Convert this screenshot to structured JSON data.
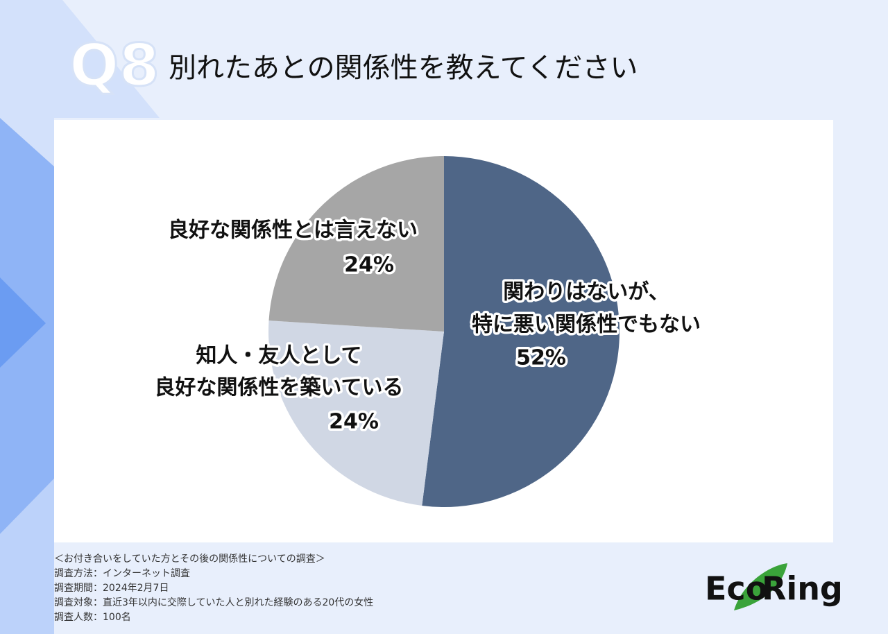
{
  "header": {
    "badge": "Q8",
    "title": "別れたあとの関係性を教えてください"
  },
  "chart_data": {
    "type": "pie",
    "categories": [
      [
        "関わりはないが、",
        "特に悪い関係性でもない"
      ],
      [
        "知人・友人として",
        "良好な関係性を築いている"
      ],
      [
        "良好な関係性とは言えない"
      ]
    ],
    "values": [
      52,
      24,
      24
    ],
    "value_labels": [
      "52%",
      "24%",
      "24%"
    ],
    "colors": [
      "#4f6687",
      "#d0d7e4",
      "#a6a6a6"
    ]
  },
  "footer": {
    "notes": [
      "＜お付き合いをしていた方とその後の関係性についての調査＞",
      "調査方法：インターネット調査",
      "調査期間：2024年2月7日",
      "調査対象：直近3年以内に交際していた人と別れた経験のある20代の女性",
      "調査人数：100名"
    ]
  },
  "logo": {
    "left": "Eco",
    "right": "Ring"
  }
}
